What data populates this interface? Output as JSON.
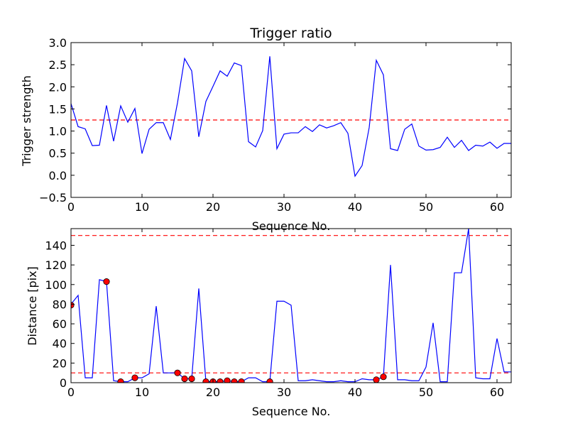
{
  "chart_data": [
    {
      "type": "line",
      "title": "Trigger ratio",
      "xlabel": "Sequence No.",
      "ylabel": "Trigger strength",
      "xlim": [
        0,
        62
      ],
      "ylim": [
        -0.5,
        3.0
      ],
      "xticks": [
        "0",
        "10",
        "20",
        "30",
        "40",
        "50",
        "60"
      ],
      "yticks": [
        "−0.5",
        "0.0",
        "0.5",
        "1.0",
        "1.5",
        "2.0",
        "2.5",
        "3.0"
      ],
      "series": [
        {
          "color": "#0000ff",
          "x": [
            0,
            1,
            2,
            3,
            4,
            5,
            6,
            7,
            8,
            9,
            10,
            11,
            12,
            13,
            14,
            15,
            16,
            17,
            18,
            19,
            20,
            21,
            22,
            23,
            24,
            25,
            26,
            27,
            28,
            29,
            30,
            31,
            32,
            33,
            34,
            35,
            36,
            37,
            38,
            39,
            40,
            41,
            42,
            43,
            44,
            45,
            46,
            47,
            48,
            49,
            50,
            51,
            52,
            53,
            54,
            55,
            56,
            57,
            58,
            59,
            60,
            61,
            62
          ],
          "values": [
            1.62,
            1.1,
            1.05,
            0.67,
            0.68,
            1.58,
            0.77,
            1.57,
            1.2,
            1.51,
            0.49,
            1.04,
            1.19,
            1.19,
            0.81,
            1.64,
            2.64,
            2.36,
            0.87,
            1.67,
            2.01,
            2.36,
            2.24,
            2.54,
            2.48,
            0.76,
            0.64,
            1.01,
            2.69,
            0.6,
            0.93,
            0.96,
            0.96,
            1.1,
            0.99,
            1.14,
            1.07,
            1.12,
            1.19,
            0.95,
            -0.02,
            0.22,
            1.08,
            2.6,
            2.27,
            0.6,
            0.56,
            1.04,
            1.16,
            0.66,
            0.57,
            0.58,
            0.63,
            0.86,
            0.63,
            0.79,
            0.56,
            0.68,
            0.66,
            0.75,
            0.61,
            0.72,
            0.72
          ]
        }
      ],
      "threshold_lines": [
        {
          "y": 1.25,
          "color": "#ff0000",
          "style": "dashed"
        }
      ]
    },
    {
      "type": "line",
      "title": "",
      "xlabel": "Sequence No.",
      "ylabel": "Distance [pix]",
      "xlim": [
        0,
        62
      ],
      "ylim": [
        0,
        157
      ],
      "xticks": [
        "0",
        "10",
        "20",
        "30",
        "40",
        "50",
        "60"
      ],
      "yticks": [
        "0",
        "20",
        "40",
        "60",
        "80",
        "100",
        "120",
        "140"
      ],
      "series": [
        {
          "color": "#0000ff",
          "x": [
            0,
            1,
            2,
            3,
            4,
            5,
            6,
            7,
            8,
            9,
            10,
            11,
            12,
            13,
            14,
            15,
            16,
            17,
            18,
            19,
            20,
            21,
            22,
            23,
            24,
            25,
            26,
            27,
            28,
            29,
            30,
            31,
            32,
            33,
            34,
            35,
            36,
            37,
            38,
            39,
            40,
            41,
            42,
            43,
            44,
            45,
            46,
            47,
            48,
            49,
            50,
            51,
            52,
            53,
            54,
            55,
            56,
            57,
            58,
            59,
            60,
            61,
            62
          ],
          "values": [
            80,
            89,
            5,
            5,
            105,
            103,
            2,
            1,
            1,
            5,
            5,
            9,
            78,
            10,
            10,
            10,
            4,
            4,
            96,
            1,
            1,
            1,
            2,
            1,
            1,
            5,
            5,
            1,
            1,
            83,
            83,
            79,
            2,
            2,
            3,
            2,
            1,
            1,
            2,
            1,
            1,
            4,
            3,
            3,
            6,
            120,
            3,
            3,
            2,
            2,
            16,
            61,
            1,
            1,
            112,
            112,
            157,
            5,
            4,
            4,
            45,
            11,
            11
          ]
        }
      ],
      "markers": {
        "color": "#ff0000",
        "x": [
          0,
          5,
          7,
          9,
          15,
          16,
          17,
          19,
          20,
          21,
          22,
          23,
          24,
          28,
          43,
          44
        ],
        "y": [
          79,
          103,
          1,
          5,
          10,
          4,
          4,
          1,
          1,
          1,
          2,
          1,
          1,
          1,
          3,
          6
        ]
      },
      "threshold_lines": [
        {
          "y": 150,
          "color": "#ff0000",
          "style": "dashed"
        },
        {
          "y": 10,
          "color": "#ff0000",
          "style": "dashed"
        }
      ]
    }
  ]
}
